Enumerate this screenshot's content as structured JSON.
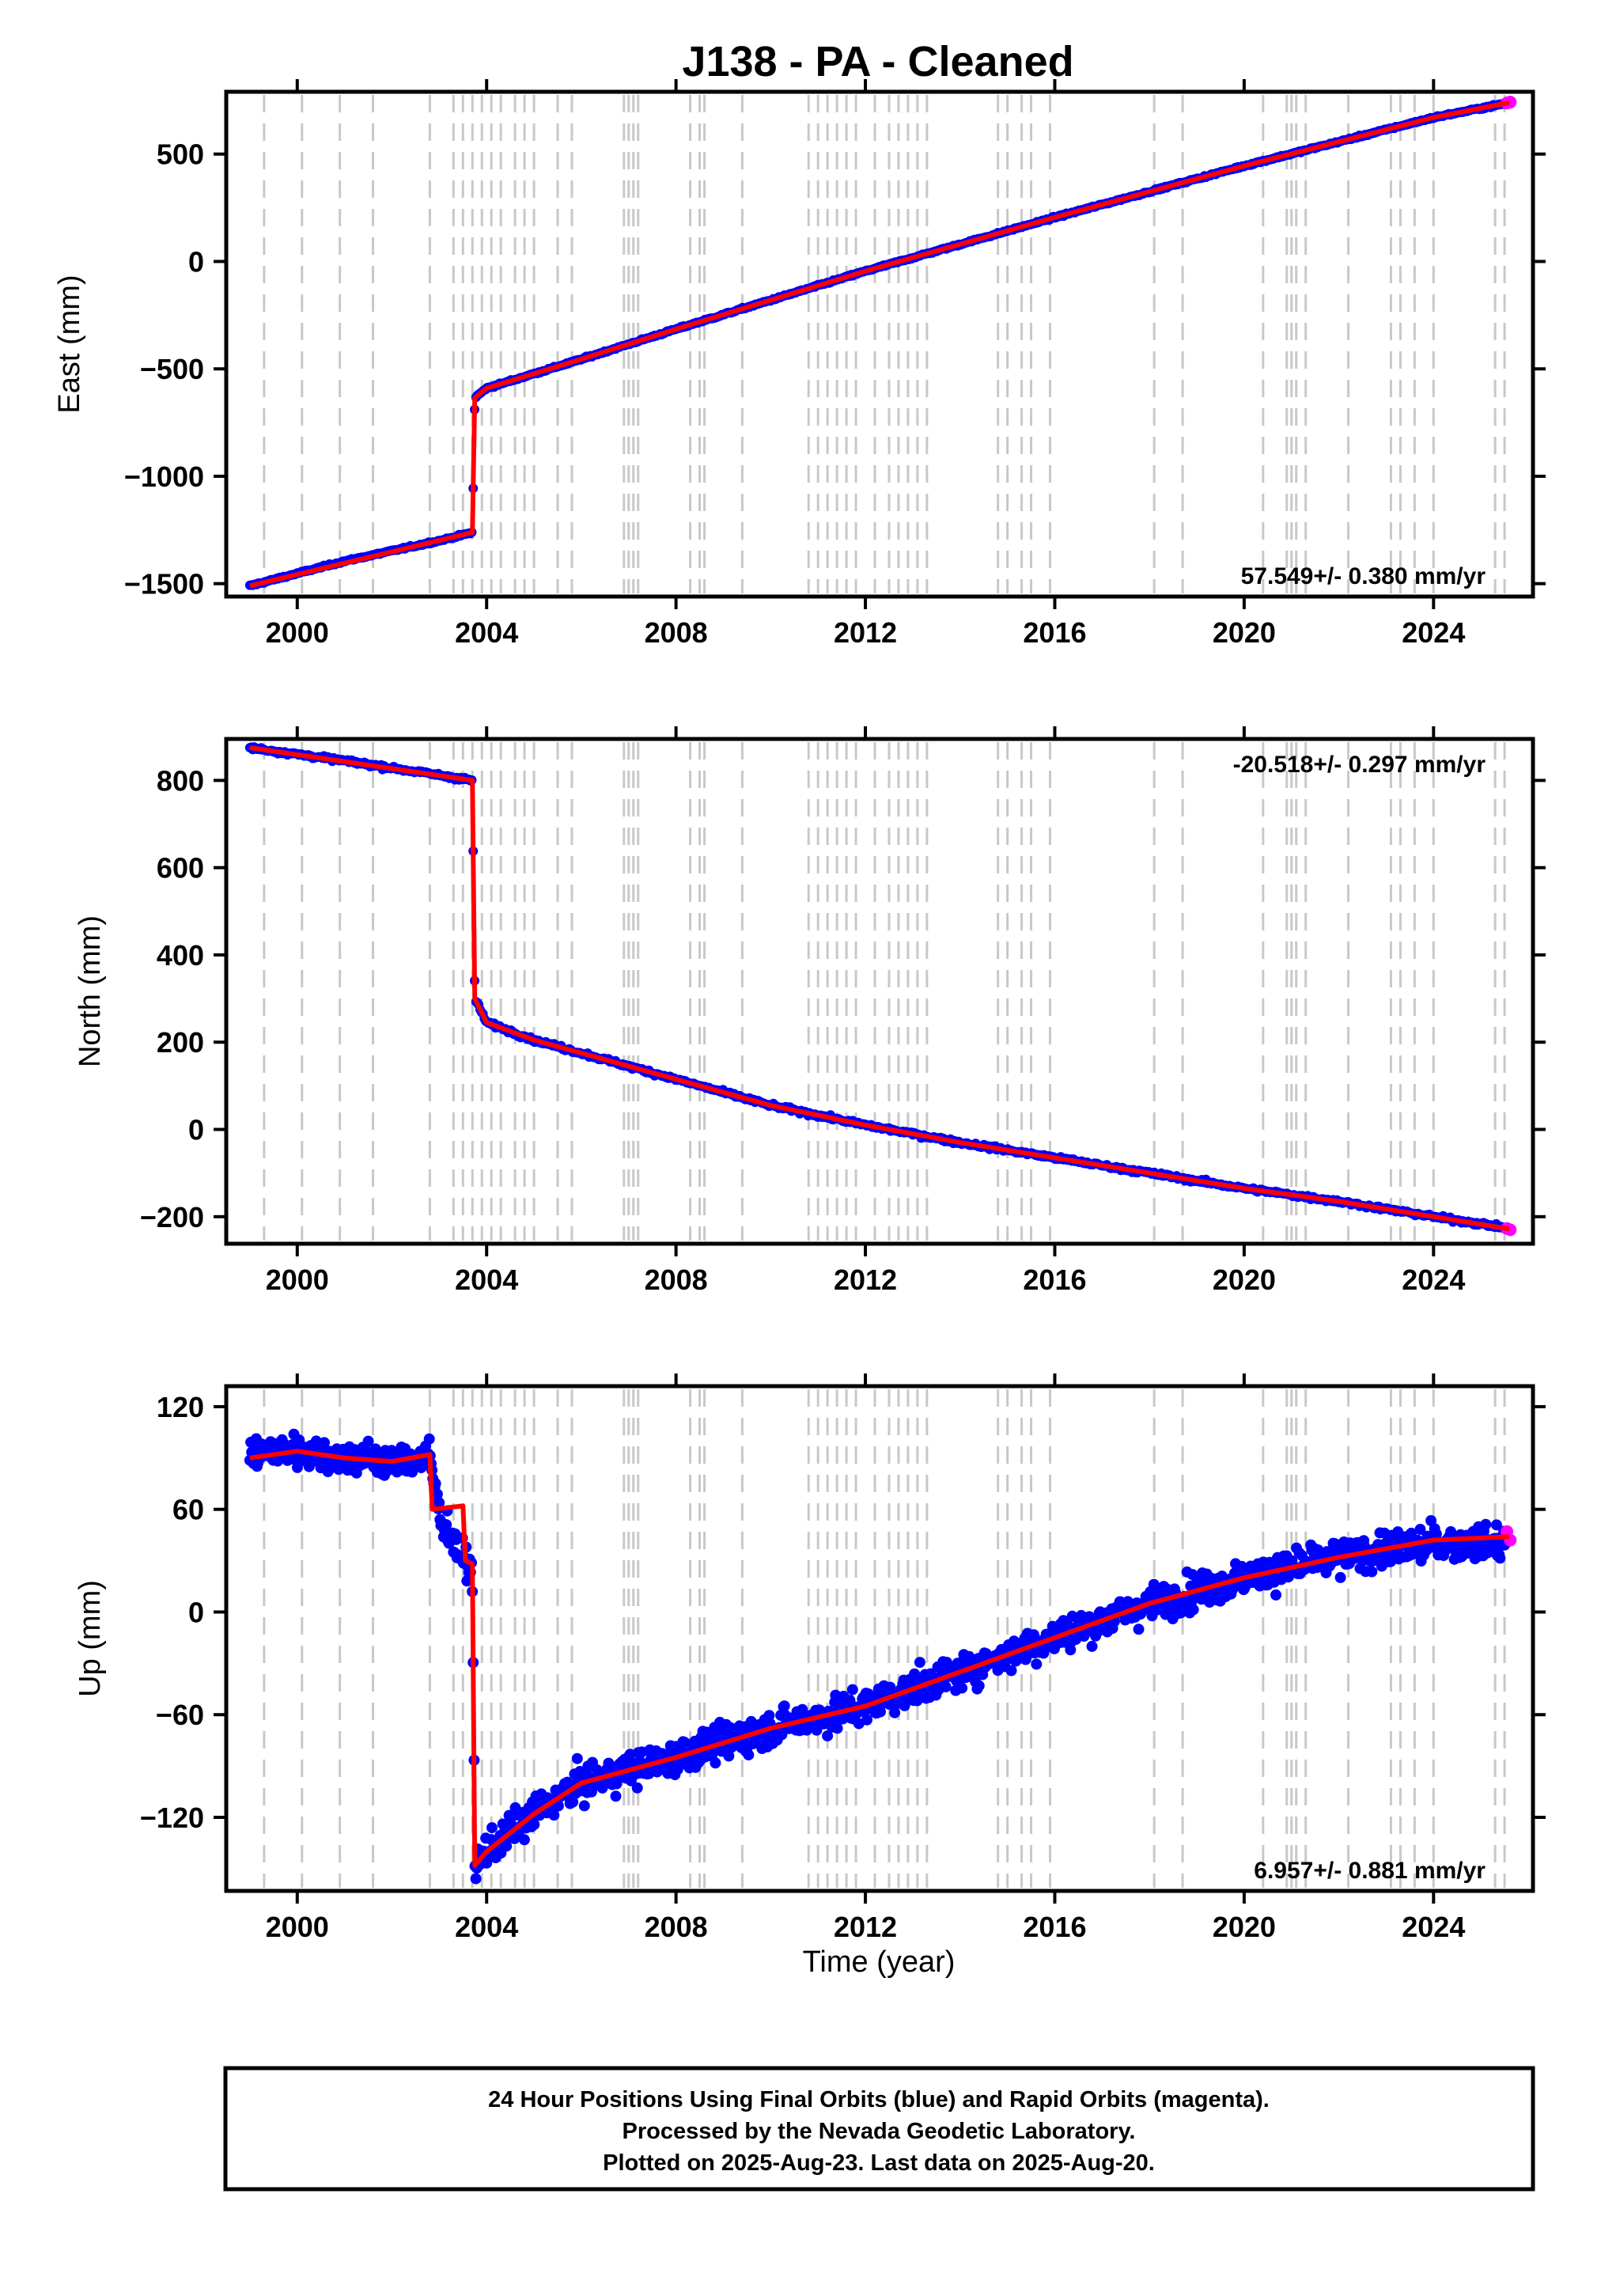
{
  "title": "J138  - PA - Cleaned",
  "x_axis": {
    "label": "Time (year)",
    "tick_labels": [
      "2000",
      "2004",
      "2008",
      "2012",
      "2016",
      "2020",
      "2024"
    ]
  },
  "chart_data": [
    {
      "type": "scatter",
      "panel": "east",
      "ylabel": "East (mm)",
      "rate_text": "57.549+/- 0.380 mm/yr",
      "rate_position": "bottom-right",
      "xlim": [
        1998.5,
        2026.1
      ],
      "ylim": [
        -1560,
        790
      ],
      "y_ticks": [
        500,
        0,
        -500,
        -1000,
        -1500
      ],
      "y_tick_labels": [
        "500",
        "0",
        "−500",
        "−1000",
        "−1500"
      ],
      "series": [
        {
          "name": "Final Orbits",
          "color": "#0000ff",
          "x": [
            1999.0,
            2001.0,
            2003.0,
            2003.7,
            2003.75,
            2004.0,
            2006.0,
            2008.0,
            2012.0,
            2016.0,
            2020.0,
            2024.0,
            2025.5
          ],
          "y": [
            -1510,
            -1395,
            -1300,
            -1262,
            -635,
            -590,
            -455,
            -315,
            -45,
            205,
            445,
            670,
            735
          ]
        },
        {
          "name": "Rapid Orbits",
          "color": "#ff00ff",
          "x": [
            2025.55,
            2025.62
          ],
          "y": [
            738,
            742
          ]
        },
        {
          "name": "Model",
          "color": "#ff0000",
          "x": [
            1999.0,
            2003.7,
            2003.75,
            2004.0,
            2006.0,
            2008.0,
            2012.0,
            2016.0,
            2020.0,
            2024.0,
            2025.6
          ],
          "y": [
            -1510,
            -1262,
            -635,
            -590,
            -455,
            -315,
            -45,
            205,
            445,
            670,
            740
          ]
        }
      ]
    },
    {
      "type": "scatter",
      "panel": "north",
      "ylabel": "North (mm)",
      "rate_text": "-20.518+/- 0.297 mm/yr",
      "rate_position": "top-right",
      "xlim": [
        1998.5,
        2026.1
      ],
      "ylim": [
        -262,
        895
      ],
      "y_ticks": [
        800,
        600,
        400,
        200,
        0,
        -200
      ],
      "y_tick_labels": [
        "800",
        "600",
        "400",
        "200",
        "0",
        "−200"
      ],
      "series": [
        {
          "name": "Final Orbits",
          "color": "#0000ff",
          "x": [
            1999.0,
            2001.0,
            2003.0,
            2003.7,
            2003.75,
            2004.0,
            2005.0,
            2006.0,
            2008.0,
            2010.0,
            2012.0,
            2014.0,
            2016.0,
            2018.0,
            2020.0,
            2022.0,
            2024.0,
            2025.5
          ],
          "y": [
            875,
            845,
            812,
            800,
            300,
            245,
            205,
            175,
            115,
            55,
            10,
            -30,
            -65,
            -100,
            -135,
            -165,
            -200,
            -225
          ]
        },
        {
          "name": "Rapid Orbits",
          "color": "#ff00ff",
          "x": [
            2025.55,
            2025.62
          ],
          "y": [
            -227,
            -230
          ]
        },
        {
          "name": "Model",
          "color": "#ff0000",
          "x": [
            1999.0,
            2003.7,
            2003.75,
            2004.0,
            2005.0,
            2006.0,
            2008.0,
            2010.0,
            2012.0,
            2014.0,
            2016.0,
            2018.0,
            2020.0,
            2022.0,
            2024.0,
            2025.6
          ],
          "y": [
            875,
            800,
            300,
            245,
            205,
            175,
            115,
            55,
            10,
            -30,
            -65,
            -100,
            -135,
            -165,
            -200,
            -228
          ]
        }
      ]
    },
    {
      "type": "scatter",
      "panel": "up",
      "ylabel": "Up (mm)",
      "rate_text": "6.957+/- 0.881 mm/yr",
      "rate_position": "bottom-right",
      "xlim": [
        1998.5,
        2026.1
      ],
      "ylim": [
        -163,
        132
      ],
      "y_ticks": [
        120,
        60,
        0,
        -60,
        -120
      ],
      "y_tick_labels": [
        "120",
        "60",
        "0",
        "−60",
        "−120"
      ],
      "series": [
        {
          "name": "Final Orbits",
          "color": "#0000ff",
          "x": [
            1999.0,
            2000.0,
            2001.0,
            2002.0,
            2002.8,
            2003.0,
            2003.5,
            2003.7,
            2003.75,
            2004.0,
            2005.0,
            2006.0,
            2008.0,
            2010.0,
            2012.0,
            2014.0,
            2016.0,
            2018.0,
            2020.0,
            2022.0,
            2024.0,
            2025.5
          ],
          "y": [
            92,
            95,
            90,
            88,
            90,
            58,
            30,
            25,
            -148,
            -140,
            -118,
            -100,
            -85,
            -68,
            -55,
            -35,
            -15,
            5,
            20,
            32,
            40,
            40
          ]
        },
        {
          "name": "Rapid Orbits",
          "color": "#ff00ff",
          "x": [
            2025.55,
            2025.62
          ],
          "y": [
            47,
            42
          ]
        },
        {
          "name": "Model",
          "color": "#ff0000",
          "x": [
            1999.0,
            2000.0,
            2001.0,
            2002.0,
            2002.8,
            2002.85,
            2003.5,
            2003.55,
            2003.7,
            2003.75,
            2004.0,
            2005.0,
            2006.0,
            2008.0,
            2010.0,
            2012.0,
            2014.0,
            2016.0,
            2018.0,
            2020.0,
            2022.0,
            2024.0,
            2025.6
          ],
          "y": [
            90,
            94,
            90,
            88,
            92,
            60,
            62,
            30,
            28,
            -148,
            -140,
            -118,
            -100,
            -85,
            -68,
            -55,
            -35,
            -15,
            5,
            20,
            32,
            42,
            44
          ]
        }
      ]
    }
  ],
  "vertical_lines": [
    1999.3,
    2000.1,
    2000.9,
    2001.6,
    2002.8,
    2003.3,
    2003.5,
    2003.7,
    2003.9,
    2004.1,
    2004.3,
    2004.6,
    2004.8,
    2005.0,
    2005.5,
    2005.8,
    2006.9,
    2007.0,
    2007.1,
    2007.2,
    2008.3,
    2008.5,
    2008.6,
    2009.4,
    2010.8,
    2011.0,
    2011.2,
    2011.4,
    2011.6,
    2011.8,
    2012.2,
    2012.5,
    2012.7,
    2012.9,
    2013.1,
    2013.3,
    2014.8,
    2015.0,
    2015.3,
    2015.5,
    2015.9,
    2018.1,
    2018.7,
    2020.4,
    2020.9,
    2021.0,
    2021.1,
    2021.3,
    2022.2,
    2023.1,
    2023.3,
    2023.6,
    2024.0,
    2025.3,
    2025.5
  ],
  "footer": {
    "line1": "24 Hour Positions Using Final Orbits (blue) and Rapid Orbits (magenta).",
    "line2": "Processed by the Nevada Geodetic Laboratory.",
    "line3": "Plotted on 2025-Aug-23. Last data on 2025-Aug-20."
  }
}
